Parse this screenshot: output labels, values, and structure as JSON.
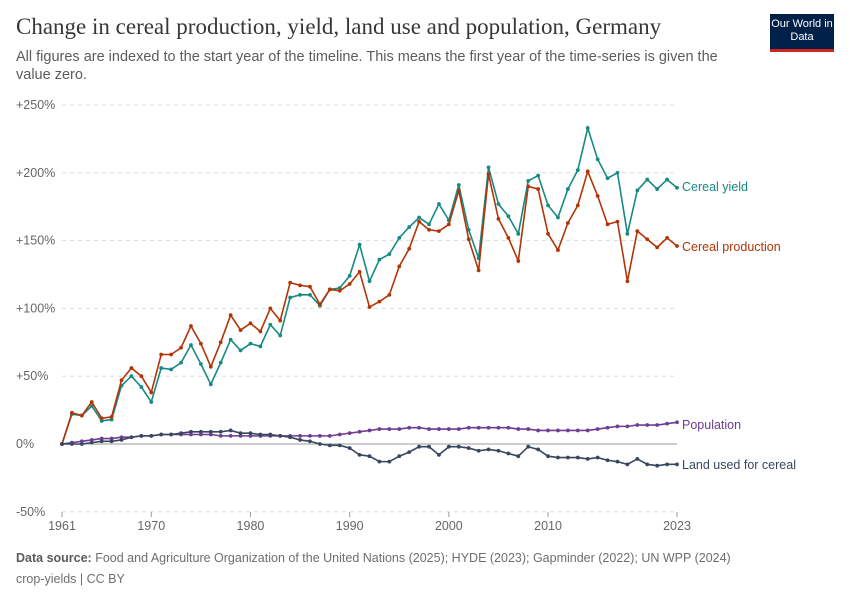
{
  "header": {
    "title": "Change in cereal production, yield, land use and population, Germany",
    "subtitle": "All figures are indexed to the start year of the timeline. This means the first year of the time-series is given the value zero.",
    "logo": "Our World in Data"
  },
  "footer": {
    "source_label": "Data source:",
    "source": "Food and Agriculture Organization of the United Nations (2025); HYDE (2023); Gapminder (2022); UN WPP (2024)",
    "slug": "crop-yields | CC BY"
  },
  "chart_data": {
    "type": "line",
    "title": "Change in cereal production, yield, land use and population, Germany",
    "xlim": [
      1961,
      2023
    ],
    "ylim": [
      -50,
      250
    ],
    "x_ticks": [
      "1961",
      "1970",
      "1980",
      "1990",
      "2000",
      "2010",
      "2023"
    ],
    "y_ticks": [
      "-50%",
      "0%",
      "+50%",
      "+100%",
      "+150%",
      "+200%",
      "+250%"
    ],
    "grid": "horizontal dashed",
    "legend": "inline-right",
    "start_year": 1961,
    "series": [
      {
        "name": "Cereal yield",
        "color": "#178a83",
        "values": [
          0,
          22,
          21,
          28,
          17,
          18,
          43,
          50,
          42,
          31,
          56,
          55,
          60,
          73,
          59,
          44,
          60,
          77,
          69,
          74,
          72,
          88,
          80,
          108,
          110,
          110,
          102,
          114,
          115,
          124,
          147,
          120,
          136,
          140,
          152,
          160,
          167,
          162,
          177,
          165,
          191,
          158,
          137,
          204,
          177,
          168,
          155,
          194,
          198,
          176,
          167,
          188,
          202,
          233,
          210,
          196,
          200,
          155,
          187,
          195,
          188,
          195,
          189
        ]
      },
      {
        "name": "Cereal production",
        "color": "#b13507",
        "values": [
          0,
          23,
          21,
          31,
          19,
          20,
          47,
          56,
          50,
          38,
          66,
          66,
          71,
          87,
          74,
          57,
          75,
          95,
          84,
          89,
          83,
          100,
          91,
          119,
          117,
          116,
          103,
          114,
          113,
          118,
          127,
          101,
          105,
          110,
          131,
          144,
          164,
          158,
          157,
          162,
          187,
          151,
          128,
          199,
          166,
          152,
          135,
          190,
          188,
          155,
          143,
          163,
          176,
          201,
          183,
          162,
          164,
          120,
          157,
          151,
          145,
          152,
          146
        ]
      },
      {
        "name": "Population",
        "color": "#6d3e91",
        "values": [
          0,
          1,
          2,
          3,
          4,
          4,
          5,
          5,
          6,
          6,
          7,
          7,
          7,
          7,
          7,
          7,
          6,
          6,
          6,
          6,
          6,
          6,
          6,
          6,
          6,
          6,
          6,
          6,
          7,
          8,
          9,
          10,
          11,
          11,
          11,
          12,
          12,
          11,
          11,
          11,
          11,
          12,
          12,
          12,
          12,
          12,
          11,
          11,
          10,
          10,
          10,
          10,
          10,
          10,
          11,
          12,
          13,
          13,
          14,
          14,
          14,
          15,
          16
        ]
      },
      {
        "name": "Land used for cereal",
        "color": "#38465e",
        "values": [
          0,
          0,
          0,
          1,
          2,
          2,
          3,
          5,
          6,
          6,
          7,
          7,
          8,
          9,
          9,
          9,
          9,
          10,
          8,
          8,
          7,
          7,
          6,
          5,
          3,
          2,
          0,
          -1,
          -1,
          -3,
          -8,
          -9,
          -13,
          -13,
          -9,
          -6,
          -2,
          -2,
          -8,
          -2,
          -2,
          -3,
          -5,
          -4,
          -5,
          -7,
          -9,
          -2,
          -4,
          -9,
          -10,
          -10,
          -10,
          -11,
          -10,
          -12,
          -13,
          -15,
          -11,
          -15,
          -16,
          -15,
          -15
        ]
      }
    ]
  }
}
